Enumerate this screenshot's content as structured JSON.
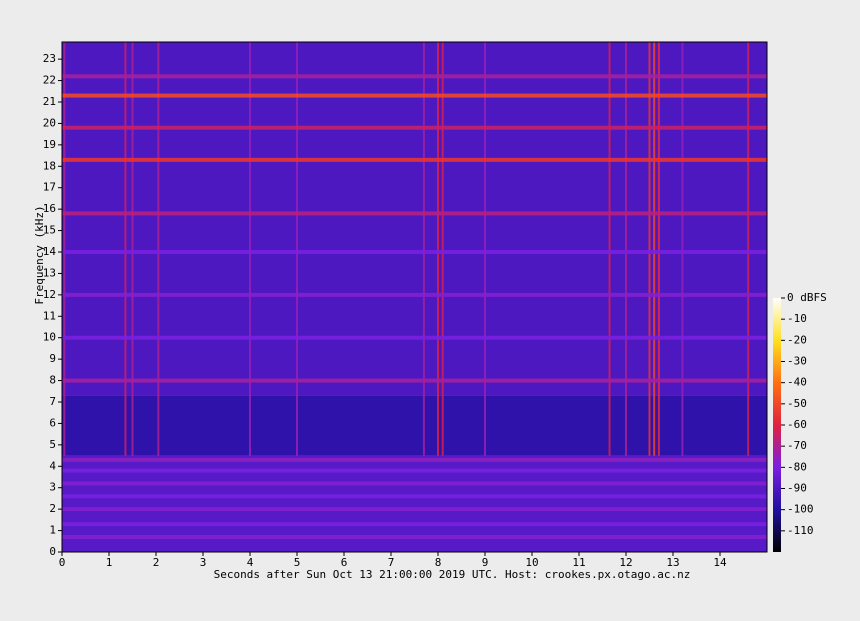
{
  "chart_data": {
    "type": "spectrogram",
    "xlabel": "Seconds after Sun Oct 13 21:00:00 2019 UTC. Host: crookes.px.otago.ac.nz",
    "ylabel": "Frequency (kHz)",
    "xlim": [
      0,
      15
    ],
    "xticks": [
      0,
      1,
      2,
      3,
      4,
      5,
      6,
      7,
      8,
      9,
      10,
      11,
      12,
      13,
      14
    ],
    "ylim": [
      0,
      23.8
    ],
    "yticks": [
      0,
      1,
      2,
      3,
      4,
      5,
      6,
      7,
      8,
      9,
      10,
      11,
      12,
      13,
      14,
      15,
      16,
      17,
      18,
      19,
      20,
      21,
      22,
      23
    ],
    "clim": [
      -120,
      0
    ],
    "cticks": [
      {
        "value": 0,
        "label": "0 dBFS"
      },
      -10,
      -20,
      -30,
      -40,
      -50,
      -60,
      -70,
      -80,
      -90,
      -100,
      -110
    ],
    "colormap": [
      "#000000",
      "#2010a0",
      "#7a20e0",
      "#e02040",
      "#ff7010",
      "#ffe020",
      "#ffffff"
    ],
    "bands": [
      {
        "lo": 0,
        "hi": 4.5,
        "level": -88
      },
      {
        "lo": 4.5,
        "hi": 7.3,
        "level": -97
      },
      {
        "lo": 7.3,
        "hi": 23.8,
        "level": -90
      }
    ],
    "tones": [
      {
        "freq": 21.3,
        "level": -50
      },
      {
        "freq": 18.3,
        "level": -55
      },
      {
        "freq": 19.8,
        "level": -65
      },
      {
        "freq": 22.2,
        "level": -72
      },
      {
        "freq": 15.8,
        "level": -68
      },
      {
        "freq": 8.0,
        "level": -72
      },
      {
        "freq": 12.0,
        "level": -78
      },
      {
        "freq": 14.0,
        "level": -80
      },
      {
        "freq": 10.0,
        "level": -80
      },
      {
        "freq": 0.7,
        "level": -78
      },
      {
        "freq": 1.3,
        "level": -80
      },
      {
        "freq": 2.0,
        "level": -78
      },
      {
        "freq": 2.6,
        "level": -80
      },
      {
        "freq": 3.2,
        "level": -78
      },
      {
        "freq": 3.8,
        "level": -80
      },
      {
        "freq": 4.3,
        "level": -76
      }
    ],
    "clicks": [
      {
        "time": 0.05,
        "level": -70
      },
      {
        "time": 1.35,
        "level": -65
      },
      {
        "time": 1.5,
        "level": -70
      },
      {
        "time": 2.05,
        "level": -70
      },
      {
        "time": 4.0,
        "level": -75
      },
      {
        "time": 5.0,
        "level": -75
      },
      {
        "time": 7.7,
        "level": -72
      },
      {
        "time": 8.0,
        "level": -60
      },
      {
        "time": 8.1,
        "level": -62
      },
      {
        "time": 9.0,
        "level": -75
      },
      {
        "time": 11.65,
        "level": -62
      },
      {
        "time": 12.0,
        "level": -70
      },
      {
        "time": 12.5,
        "level": -55
      },
      {
        "time": 12.6,
        "level": -50
      },
      {
        "time": 12.7,
        "level": -58
      },
      {
        "time": 13.2,
        "level": -75
      },
      {
        "time": 14.6,
        "level": -62
      }
    ]
  }
}
